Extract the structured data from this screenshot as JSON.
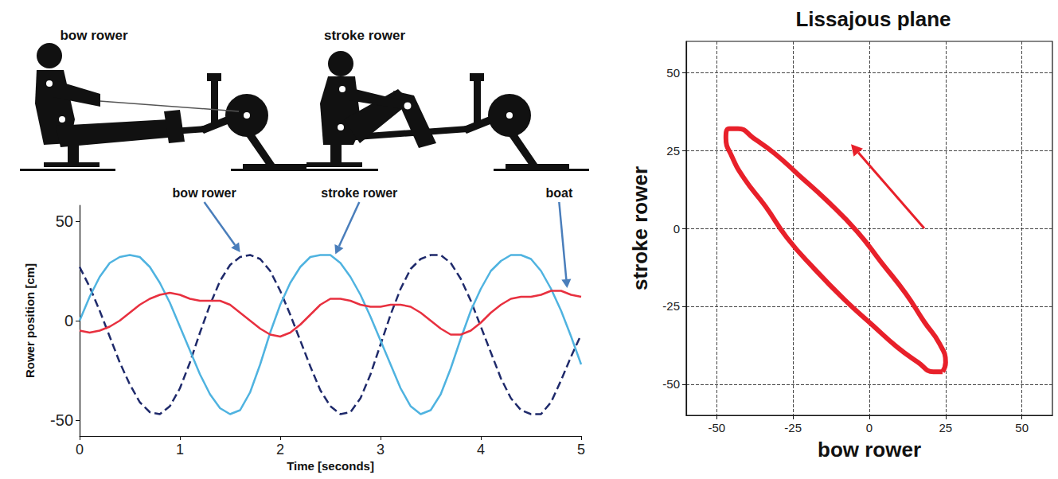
{
  "illustration": {
    "labels": [
      "bow rower",
      "stroke rower"
    ]
  },
  "chart_data": [
    {
      "type": "line",
      "x_label": "Time [seconds]",
      "y_label": "Rower position [cm]",
      "x": [
        0,
        0.1,
        0.2,
        0.3,
        0.4,
        0.5,
        0.6,
        0.7,
        0.8,
        0.9,
        1.0,
        1.1,
        1.2,
        1.3,
        1.4,
        1.5,
        1.6,
        1.7,
        1.8,
        1.9,
        2.0,
        2.1,
        2.2,
        2.3,
        2.4,
        2.5,
        2.6,
        2.7,
        2.8,
        2.9,
        3.0,
        3.1,
        3.2,
        3.3,
        3.4,
        3.5,
        3.6,
        3.7,
        3.8,
        3.9,
        4.0,
        4.1,
        4.2,
        4.3,
        4.4,
        4.5,
        4.6,
        4.7,
        4.8,
        4.9,
        5.0
      ],
      "series": [
        {
          "name": "bow rower",
          "color": "#1f2a6b",
          "line_style": "dashed",
          "marker": "none",
          "values": [
            27,
            17,
            5,
            -8,
            -21,
            -32,
            -41,
            -46,
            -47,
            -43,
            -34,
            -21,
            -6,
            8,
            20,
            28,
            32,
            33,
            31,
            25,
            15,
            3,
            -10,
            -23,
            -35,
            -43,
            -47,
            -46,
            -39,
            -27,
            -12,
            3,
            16,
            26,
            31,
            33,
            33,
            29,
            21,
            10,
            -3,
            -16,
            -29,
            -39,
            -45,
            -47,
            -47,
            -41,
            -30,
            -18,
            -7
          ]
        },
        {
          "name": "stroke rower",
          "color": "#4fb3e0",
          "line_style": "solid",
          "marker": "none",
          "values": [
            0,
            12,
            22,
            29,
            32,
            33,
            32,
            27,
            19,
            9,
            -3,
            -15,
            -27,
            -37,
            -44,
            -47,
            -45,
            -36,
            -22,
            -6,
            8,
            19,
            27,
            32,
            33,
            33,
            29,
            22,
            13,
            2,
            -10,
            -22,
            -34,
            -43,
            -47,
            -45,
            -37,
            -24,
            -9,
            5,
            16,
            25,
            30,
            33,
            33,
            31,
            25,
            16,
            5,
            -8,
            -22
          ]
        },
        {
          "name": "boat",
          "color": "#e8303f",
          "line_style": "solid",
          "marker": "none",
          "values": [
            -5,
            -6,
            -5,
            -3,
            0,
            4,
            8,
            11,
            13,
            14,
            13,
            11,
            10,
            10,
            10,
            8,
            4,
            0,
            -4,
            -7,
            -8,
            -6,
            -2,
            3,
            8,
            11,
            11,
            10,
            8,
            7,
            7,
            8,
            8,
            7,
            4,
            0,
            -4,
            -7,
            -7,
            -5,
            -1,
            4,
            8,
            11,
            12,
            12,
            13,
            15,
            15,
            13,
            12
          ]
        }
      ],
      "annotations": [
        {
          "series": "bow rower",
          "x": 1.6,
          "y": 32
        },
        {
          "series": "stroke rower",
          "x": 2.55,
          "y": 31
        },
        {
          "series": "boat",
          "x": 4.86,
          "y": 14
        }
      ],
      "xlim": [
        0,
        5
      ],
      "xticks": [
        0,
        1,
        2,
        3,
        4,
        5
      ],
      "ylim": [
        -58,
        58
      ],
      "yticks": [
        -50,
        0,
        50
      ],
      "grid": false
    },
    {
      "type": "line",
      "title": "Lissajous plane",
      "x_label": "bow rower",
      "y_label": "stroke rower",
      "series": [
        {
          "color": "#e8202a",
          "line_style": "solid",
          "marker": "none",
          "x": [
            24,
            25,
            23,
            18,
            12,
            4,
            -4,
            -14,
            -23,
            -31,
            -38,
            -43,
            -46,
            -47,
            -45,
            -41,
            -34,
            -27,
            -18,
            -8,
            1,
            9,
            16,
            21,
            24
          ],
          "values": [
            -46,
            -43,
            -37,
            -30,
            -21,
            -11,
            -1,
            9,
            17,
            24,
            29,
            32,
            32,
            29,
            23,
            16,
            7,
            -3,
            -13,
            -23,
            -31,
            -38,
            -43,
            -46,
            -46
          ]
        }
      ],
      "arrows": [
        {
          "from": [
            18,
            0
          ],
          "to": [
            -6,
            27
          ],
          "color": "#e8202a"
        }
      ],
      "xlim": [
        -60,
        60
      ],
      "xticks": [
        -50,
        -25,
        0,
        25,
        50
      ],
      "ylim": [
        -60,
        60
      ],
      "yticks": [
        -50,
        -25,
        0,
        25,
        50
      ],
      "grid": true
    }
  ]
}
